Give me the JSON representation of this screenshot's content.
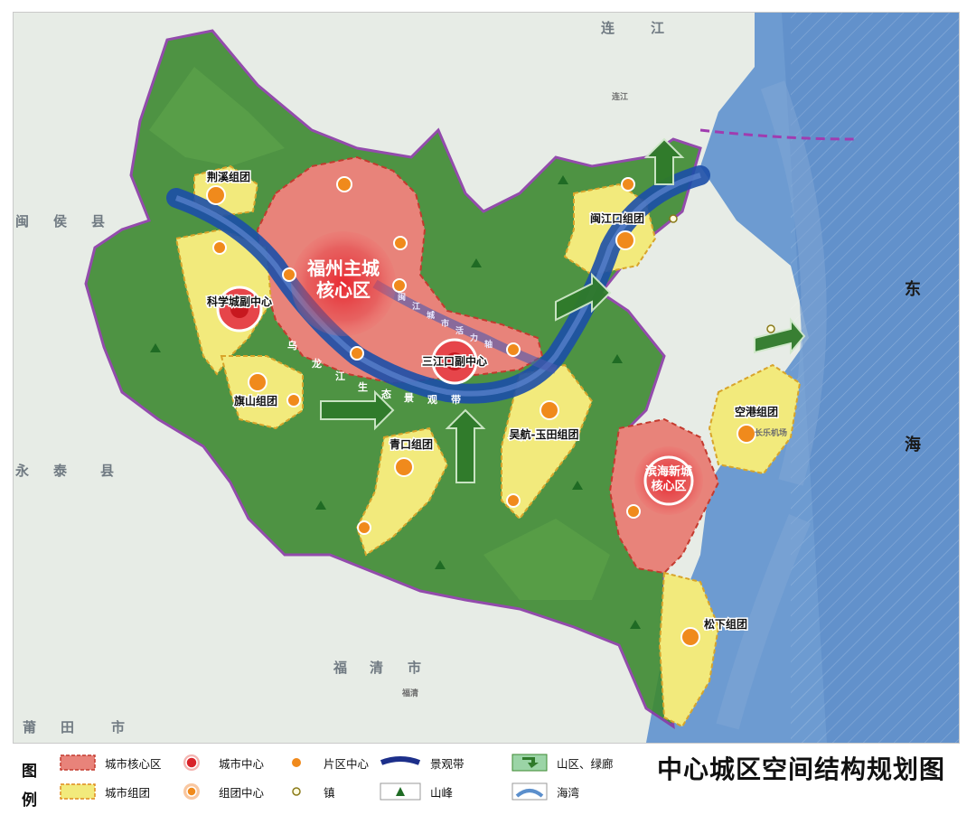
{
  "map": {
    "core_labels": [
      {
        "id": "fuzhou-core",
        "lines": [
          "福州主城",
          "核心区"
        ]
      },
      {
        "id": "binhai-core",
        "lines": [
          "滨海新城",
          "核心区"
        ]
      }
    ],
    "sub_centers": [
      "科学城副中心",
      "三江口副中心"
    ],
    "clusters": [
      "荆溪组团",
      "闽江口组团",
      "旗山组团",
      "青口组团",
      "吴航-玉田组团",
      "空港组团",
      "松下组团"
    ],
    "landscape_belt_chars": [
      "乌",
      "龙",
      "江",
      "生",
      "态",
      "景",
      "观",
      "带"
    ],
    "belt_chars_2": [
      "闽",
      "江",
      "城",
      "市",
      "活",
      "力",
      "轴"
    ],
    "regions": [
      "连",
      "江",
      "闽",
      "侯",
      "县",
      "永",
      "泰",
      "县",
      "福",
      "清",
      "市",
      "莆",
      "田",
      "市"
    ],
    "sea_chars": [
      "东",
      "海"
    ],
    "small_places": [
      "连江",
      "长乐机场",
      "福清"
    ]
  },
  "legend": {
    "heading": [
      "图",
      "例"
    ],
    "items": [
      {
        "id": "city-core-area",
        "label": "城市核心区"
      },
      {
        "id": "city-center",
        "label": "城市中心"
      },
      {
        "id": "area-center",
        "label": "片区中心"
      },
      {
        "id": "landscape-belt",
        "label": "景观带"
      },
      {
        "id": "mountain-corridor",
        "label": "山区、绿廊"
      },
      {
        "id": "city-cluster",
        "label": "城市组团"
      },
      {
        "id": "cluster-center",
        "label": "组团中心"
      },
      {
        "id": "town",
        "label": "镇"
      },
      {
        "id": "peak",
        "label": "山峰"
      },
      {
        "id": "bay",
        "label": "海湾"
      }
    ]
  },
  "title": "中心城区空间结构规划图",
  "colors": {
    "mountain": "#3e8a32",
    "core": "#e8837a",
    "cluster": "#f2ea7c",
    "river": "#1c4fa8",
    "sea": "#5b8fcc",
    "boundary": "#8a3aa6",
    "center": "#d8242a",
    "subcenter": "#f08a1c"
  }
}
